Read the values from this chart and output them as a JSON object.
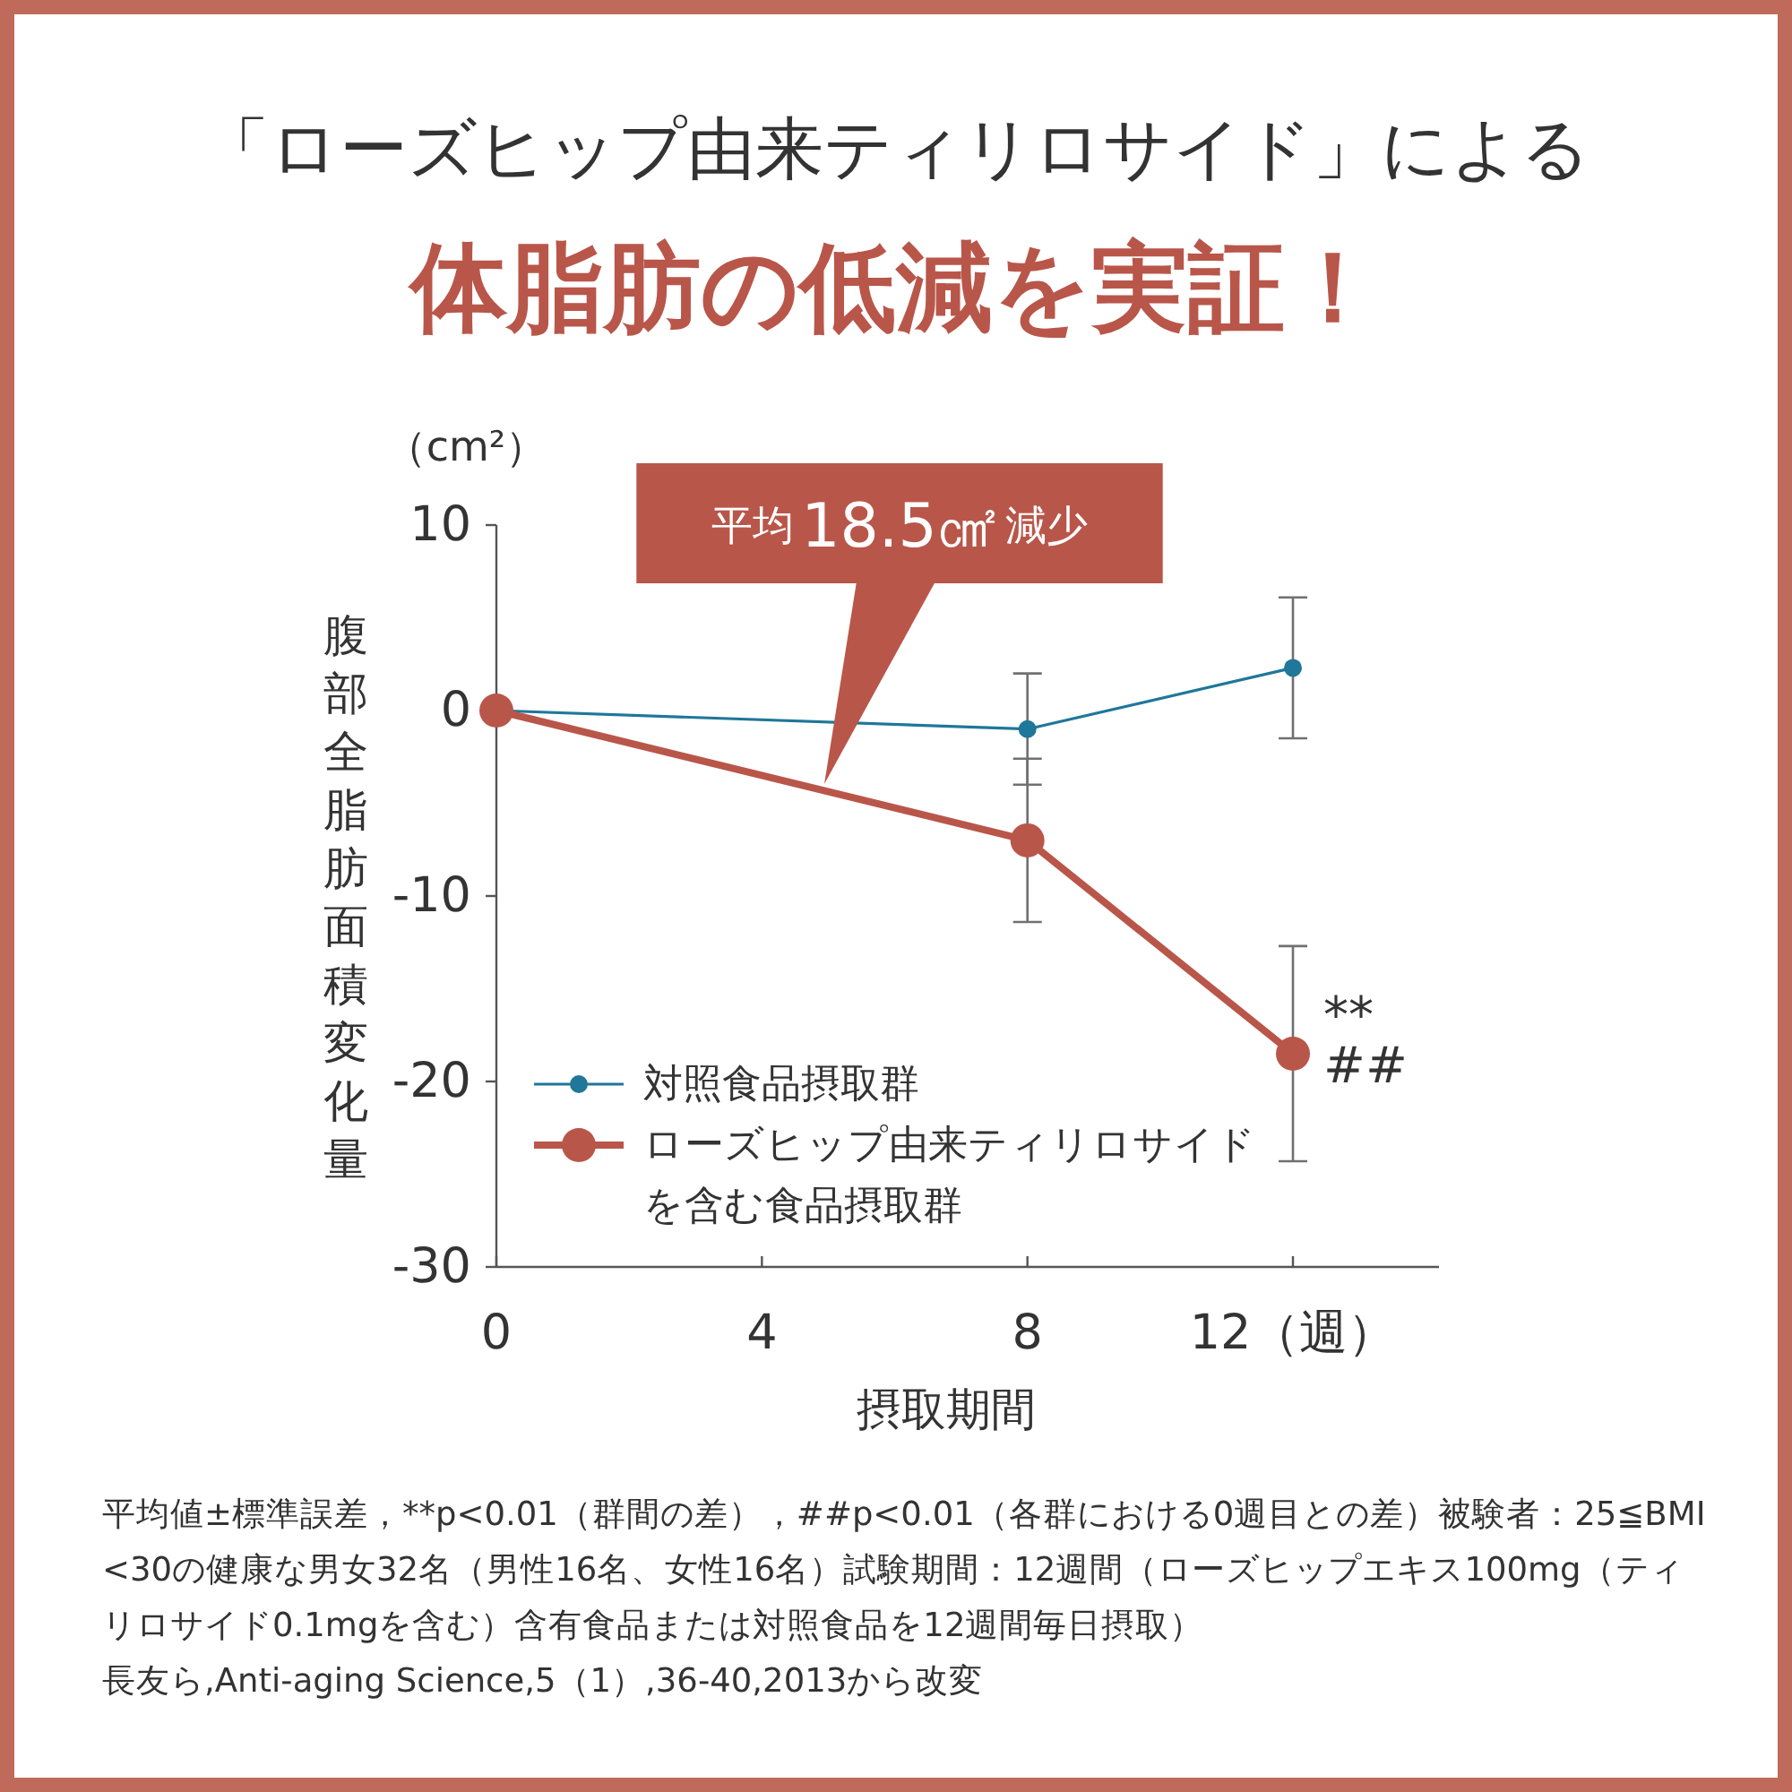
{
  "chart_data": {
    "type": "line",
    "title": "「ローズヒップ由来ティリロサイド」による",
    "subtitle": "体脂肪の低減を実証！",
    "xlabel": "摂取期間",
    "ylabel": "腹部全脂肪面積変化量",
    "x": [
      0,
      8,
      12
    ],
    "series": [
      {
        "name": "対照食品摂取群",
        "color": "#1f7799",
        "values": [
          0,
          -1.0,
          2.3
        ],
        "errors": [
          null,
          3.0,
          3.8
        ]
      },
      {
        "name": "ローズヒップ由来ティリロサイドを含む食品摂取群",
        "color": "#b9564a",
        "values": [
          0,
          -7.0,
          -18.5
        ],
        "errors": [
          null,
          4.4,
          5.8
        ]
      }
    ],
    "xlim": [
      0,
      14.2
    ],
    "xticks": [
      0,
      4,
      8,
      {
        "value": 12,
        "label": "12（週）"
      }
    ],
    "ylim": [
      -30,
      10
    ],
    "yticks": [
      -30,
      -20,
      -10,
      0,
      10
    ],
    "legend": "bottom left",
    "marker": "circle",
    "annotations": [
      "（cm²）",
      "平均18.5㎠減少",
      {
        "text": "**",
        "x": 12,
        "y": -18.5
      },
      {
        "text": "##",
        "x": 12,
        "y": -18.5
      },
      "平均値±標準誤差，**p<0.01（群間の差），##p<0.01（各群における0週目との差）被験者：25≦BMI<30の健康な男女32名（男性16名、女性16名）試験期間：12週間（ローズヒップエキス100mg（ティリロサイド0.1mgを含む）含有食品または対照食品を12週間毎日摂取）",
      "長友ら,Anti-aging Science,5（1）,36-40,2013から改変"
    ]
  }
}
